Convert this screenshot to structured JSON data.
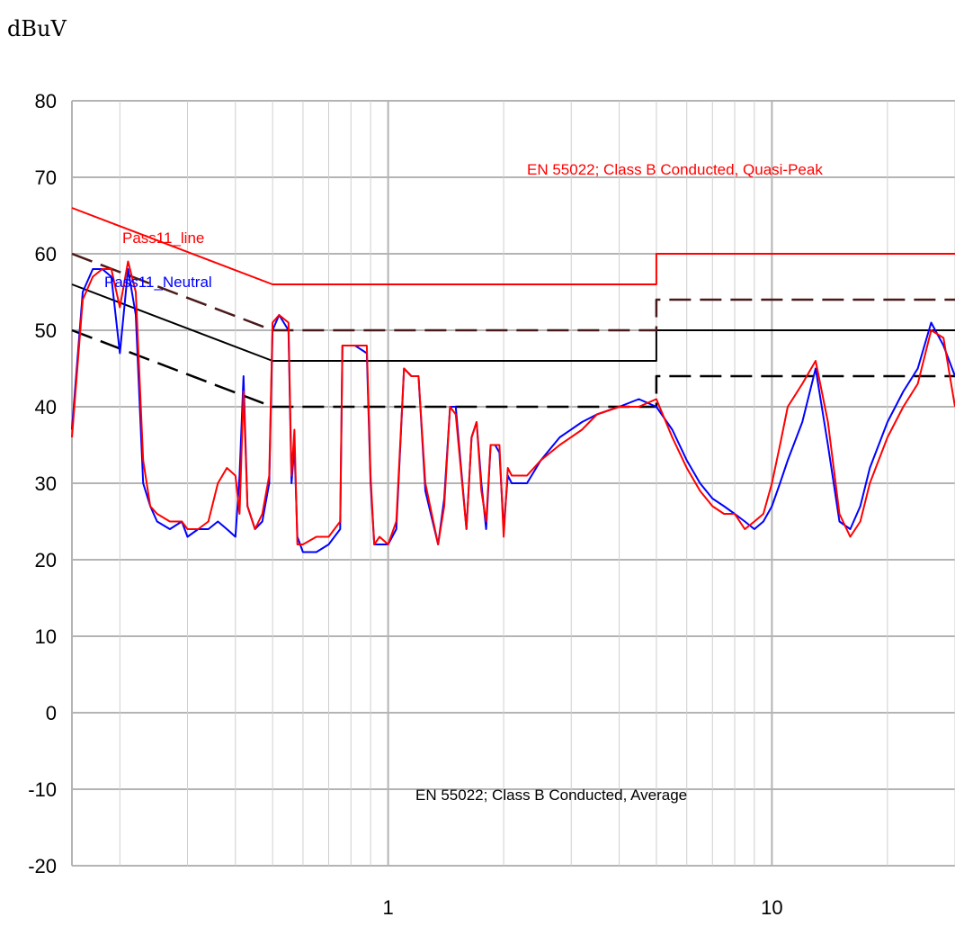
{
  "chart_data": {
    "type": "line",
    "ylabel": "dBuV",
    "x_scale": "log",
    "x_unit": "MHz",
    "xlim": [
      0.15,
      30
    ],
    "ylim": [
      -20,
      80
    ],
    "y_ticks": [
      80,
      70,
      60,
      50,
      40,
      30,
      20,
      10,
      0,
      -10,
      -20
    ],
    "x_tick_labels": [
      {
        "value": 1,
        "label": "1"
      },
      {
        "value": 10,
        "label": "10"
      }
    ],
    "grid": true,
    "annotations": [
      {
        "text": "EN 55022; Class B Conducted, Quasi-Peak",
        "color": "#ff0000"
      },
      {
        "text": "Pass11_line",
        "color": "#ff0000"
      },
      {
        "text": "Pass11_Neutral",
        "color": "#0000ff"
      },
      {
        "text": "EN 55022; Class B Conducted, Average",
        "color": "#000000"
      }
    ],
    "series": [
      {
        "name": "EN 55022; Class B Conducted, Quasi-Peak",
        "color": "#ff0000",
        "style": "solid",
        "x": [
          0.15,
          0.5,
          0.5,
          5,
          5,
          30
        ],
        "y": [
          66,
          56,
          56,
          56,
          60,
          60
        ]
      },
      {
        "name": "EN 55022; Class B Conducted, Average",
        "color": "#000000",
        "style": "solid",
        "x": [
          0.15,
          0.5,
          0.5,
          5,
          5,
          30
        ],
        "y": [
          56,
          46,
          46,
          46,
          50,
          50
        ]
      },
      {
        "color": "#4a1a1a",
        "style": "dashed",
        "x": [
          0.15,
          0.5,
          0.5,
          5,
          5,
          30
        ],
        "y": [
          60,
          50,
          50,
          50,
          54,
          54
        ]
      },
      {
        "color": "#000000",
        "style": "dashed",
        "x": [
          0.15,
          0.5,
          0.5,
          5,
          5,
          30
        ],
        "y": [
          50,
          40,
          40,
          40,
          44,
          44
        ]
      },
      {
        "name": "Pass11_Neutral",
        "color": "#0000ff",
        "style": "solid",
        "x": [
          0.15,
          0.16,
          0.17,
          0.18,
          0.19,
          0.2,
          0.21,
          0.22,
          0.23,
          0.24,
          0.25,
          0.27,
          0.29,
          0.3,
          0.32,
          0.34,
          0.36,
          0.38,
          0.4,
          0.41,
          0.42,
          0.43,
          0.45,
          0.47,
          0.49,
          0.5,
          0.52,
          0.55,
          0.56,
          0.57,
          0.58,
          0.6,
          0.65,
          0.7,
          0.75,
          0.76,
          0.78,
          0.82,
          0.88,
          0.9,
          0.92,
          0.95,
          1.0,
          1.05,
          1.1,
          1.15,
          1.2,
          1.25,
          1.35,
          1.4,
          1.45,
          1.5,
          1.6,
          1.65,
          1.7,
          1.75,
          1.8,
          1.85,
          1.9,
          1.95,
          2.0,
          2.05,
          2.1,
          2.2,
          2.3,
          2.5,
          2.8,
          3.2,
          3.5,
          4.0,
          4.5,
          5.0,
          5.5,
          6.0,
          6.5,
          7.0,
          7.5,
          8.0,
          8.5,
          9.0,
          9.5,
          10,
          10.5,
          11,
          12,
          13,
          14,
          15,
          16,
          17,
          18,
          20,
          22,
          24,
          26,
          28,
          30
        ],
        "y": [
          37,
          55,
          58,
          58,
          57,
          47,
          58,
          52,
          30,
          27,
          25,
          24,
          25,
          23,
          24,
          24,
          25,
          24,
          23,
          31,
          44,
          27,
          24,
          25,
          30,
          50,
          52,
          50,
          30,
          35,
          23,
          21,
          21,
          22,
          24,
          48,
          48,
          48,
          47,
          30,
          22,
          22,
          22,
          24,
          45,
          44,
          44,
          29,
          22,
          28,
          40,
          40,
          24,
          36,
          38,
          30,
          24,
          35,
          35,
          34,
          24,
          31,
          30,
          30,
          30,
          33,
          36,
          38,
          39,
          40,
          41,
          40,
          37,
          33,
          30,
          28,
          27,
          26,
          25,
          24,
          25,
          27,
          30,
          33,
          38,
          45,
          35,
          25,
          24,
          27,
          32,
          38,
          42,
          45,
          51,
          48,
          44
        ]
      },
      {
        "name": "Pass11_line",
        "color": "#ff0000",
        "style": "solid",
        "x": [
          0.15,
          0.16,
          0.17,
          0.18,
          0.19,
          0.2,
          0.21,
          0.22,
          0.23,
          0.24,
          0.25,
          0.27,
          0.29,
          0.3,
          0.32,
          0.34,
          0.36,
          0.38,
          0.4,
          0.41,
          0.42,
          0.43,
          0.45,
          0.47,
          0.49,
          0.5,
          0.52,
          0.55,
          0.56,
          0.57,
          0.58,
          0.6,
          0.65,
          0.7,
          0.75,
          0.76,
          0.78,
          0.82,
          0.88,
          0.9,
          0.92,
          0.95,
          1.0,
          1.05,
          1.1,
          1.15,
          1.2,
          1.25,
          1.35,
          1.4,
          1.45,
          1.5,
          1.6,
          1.65,
          1.7,
          1.75,
          1.8,
          1.85,
          1.9,
          1.95,
          2.0,
          2.05,
          2.1,
          2.2,
          2.3,
          2.5,
          2.8,
          3.2,
          3.5,
          4.0,
          4.5,
          5.0,
          5.5,
          6.0,
          6.5,
          7.0,
          7.5,
          8.0,
          8.5,
          9.0,
          9.5,
          10,
          10.5,
          11,
          12,
          13,
          14,
          15,
          16,
          17,
          18,
          20,
          22,
          24,
          26,
          28,
          30
        ],
        "y": [
          36,
          54,
          57,
          58,
          58,
          53,
          59,
          55,
          33,
          27,
          26,
          25,
          25,
          24,
          24,
          25,
          30,
          32,
          31,
          26,
          42,
          27,
          24,
          26,
          31,
          51,
          52,
          51,
          31,
          37,
          22,
          22,
          23,
          23,
          25,
          48,
          48,
          48,
          48,
          31,
          22,
          23,
          22,
          25,
          45,
          44,
          44,
          30,
          22,
          27,
          40,
          39,
          24,
          36,
          38,
          29,
          25,
          35,
          35,
          35,
          23,
          32,
          31,
          31,
          31,
          33,
          35,
          37,
          39,
          40,
          40,
          41,
          36,
          32,
          29,
          27,
          26,
          26,
          24,
          25,
          26,
          30,
          35,
          40,
          43,
          46,
          38,
          26,
          23,
          25,
          30,
          36,
          40,
          43,
          50,
          49,
          40
        ]
      }
    ]
  }
}
